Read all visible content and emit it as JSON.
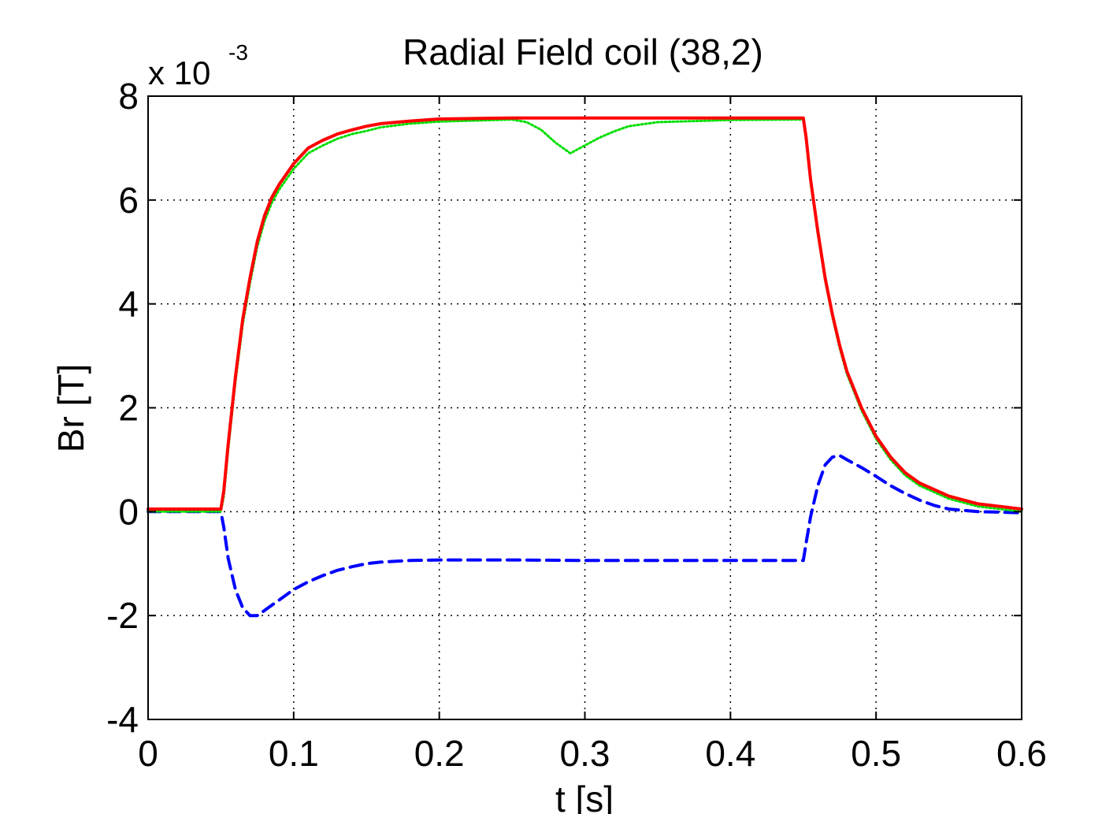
{
  "chart_data": {
    "type": "line",
    "title": "Radial Field coil (38,2)",
    "xlabel": "t [s]",
    "ylabel": "Br [T]",
    "y_exponent_base": "x 10",
    "y_exponent_power": "-3",
    "xlim": [
      0,
      0.6
    ],
    "ylim": [
      -4,
      8
    ],
    "x_ticks": [
      0,
      0.1,
      0.2,
      0.3,
      0.4,
      0.5,
      0.6
    ],
    "x_tick_labels": [
      "0",
      "0.1",
      "0.2",
      "0.3",
      "0.4",
      "0.5",
      "0.6"
    ],
    "y_ticks": [
      -4,
      -2,
      0,
      2,
      4,
      6,
      8
    ],
    "y_tick_labels": [
      "-4",
      "-2",
      "0",
      "2",
      "4",
      "6",
      "8"
    ],
    "grid": true,
    "legend": "none",
    "series": [
      {
        "color": "#ff0000",
        "style": "solid",
        "x": [
          0,
          0.05,
          0.052,
          0.055,
          0.06,
          0.065,
          0.07,
          0.075,
          0.08,
          0.085,
          0.09,
          0.1,
          0.11,
          0.12,
          0.13,
          0.14,
          0.15,
          0.16,
          0.18,
          0.2,
          0.25,
          0.3,
          0.35,
          0.4,
          0.45,
          0.452,
          0.455,
          0.46,
          0.465,
          0.47,
          0.475,
          0.48,
          0.49,
          0.5,
          0.51,
          0.52,
          0.53,
          0.55,
          0.57,
          0.6
        ],
        "y": [
          0.05,
          0.05,
          0.4,
          1.3,
          2.6,
          3.7,
          4.5,
          5.2,
          5.7,
          6.05,
          6.3,
          6.7,
          7.0,
          7.15,
          7.27,
          7.35,
          7.42,
          7.47,
          7.52,
          7.56,
          7.58,
          7.58,
          7.58,
          7.58,
          7.58,
          7.2,
          6.4,
          5.4,
          4.5,
          3.8,
          3.2,
          2.7,
          2.0,
          1.45,
          1.05,
          0.75,
          0.55,
          0.3,
          0.15,
          0.05
        ]
      },
      {
        "color": "#00dd00",
        "style": "dotted",
        "x": [
          0,
          0.05,
          0.052,
          0.055,
          0.06,
          0.065,
          0.07,
          0.075,
          0.08,
          0.085,
          0.09,
          0.1,
          0.11,
          0.12,
          0.13,
          0.14,
          0.15,
          0.16,
          0.18,
          0.2,
          0.25,
          0.26,
          0.27,
          0.28,
          0.29,
          0.3,
          0.31,
          0.32,
          0.33,
          0.35,
          0.4,
          0.45,
          0.452,
          0.455,
          0.46,
          0.465,
          0.47,
          0.475,
          0.48,
          0.49,
          0.5,
          0.51,
          0.52,
          0.53,
          0.55,
          0.57,
          0.6
        ],
        "y": [
          0.0,
          0.0,
          0.3,
          1.2,
          2.5,
          3.6,
          4.4,
          5.1,
          5.6,
          5.95,
          6.2,
          6.6,
          6.9,
          7.05,
          7.18,
          7.27,
          7.33,
          7.4,
          7.47,
          7.51,
          7.55,
          7.5,
          7.35,
          7.1,
          6.9,
          7.05,
          7.2,
          7.32,
          7.42,
          7.5,
          7.54,
          7.55,
          7.15,
          6.35,
          5.35,
          4.45,
          3.75,
          3.15,
          2.65,
          1.95,
          1.4,
          1.0,
          0.7,
          0.5,
          0.25,
          0.1,
          0.0
        ]
      },
      {
        "color": "#0000ff",
        "style": "dashed",
        "x": [
          0,
          0.05,
          0.052,
          0.055,
          0.06,
          0.065,
          0.07,
          0.075,
          0.08,
          0.09,
          0.1,
          0.11,
          0.12,
          0.13,
          0.14,
          0.15,
          0.16,
          0.18,
          0.2,
          0.25,
          0.3,
          0.35,
          0.4,
          0.45,
          0.452,
          0.455,
          0.46,
          0.465,
          0.47,
          0.475,
          0.48,
          0.49,
          0.5,
          0.51,
          0.52,
          0.53,
          0.54,
          0.55,
          0.57,
          0.6
        ],
        "y": [
          0.0,
          0.0,
          -0.3,
          -0.9,
          -1.5,
          -1.85,
          -2.0,
          -2.0,
          -1.9,
          -1.7,
          -1.5,
          -1.35,
          -1.23,
          -1.13,
          -1.06,
          -1.0,
          -0.97,
          -0.94,
          -0.93,
          -0.93,
          -0.94,
          -0.94,
          -0.94,
          -0.94,
          -0.6,
          -0.1,
          0.5,
          0.9,
          1.05,
          1.08,
          1.0,
          0.85,
          0.68,
          0.5,
          0.35,
          0.22,
          0.12,
          0.05,
          0.0,
          -0.02
        ]
      }
    ]
  }
}
